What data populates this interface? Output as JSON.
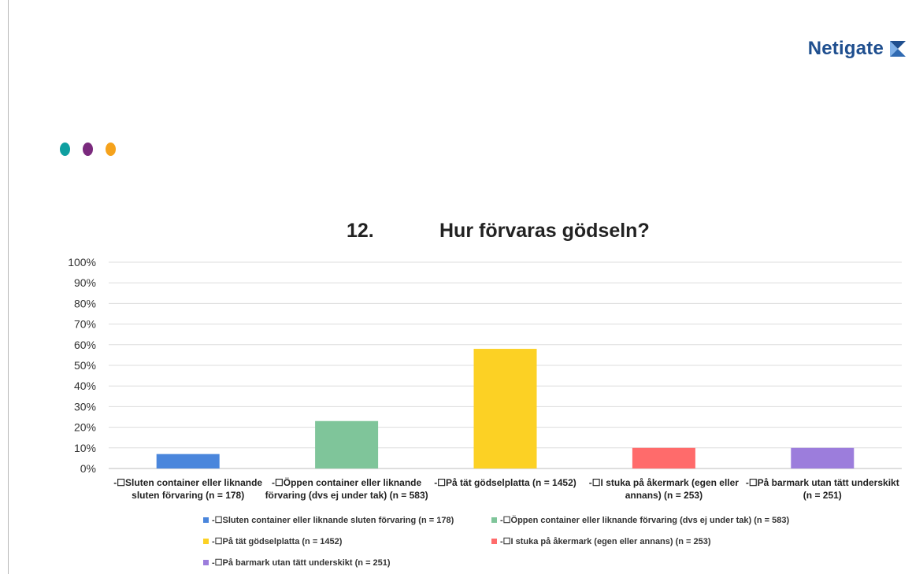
{
  "brand": {
    "name": "Netigate"
  },
  "decor": {
    "dot_colors": [
      "#0e9fa0",
      "#7a2a7d",
      "#f5a21c"
    ]
  },
  "chart_data": {
    "type": "bar",
    "title_number": "12.",
    "title": "Hur förvaras gödseln?",
    "xlabel": "",
    "ylabel": "",
    "ylim": [
      0,
      100
    ],
    "yticks": [
      "0%",
      "10%",
      "20%",
      "30%",
      "40%",
      "50%",
      "60%",
      "70%",
      "80%",
      "90%",
      "100%"
    ],
    "grid": true,
    "legend_position": "bottom",
    "categories": [
      [
        "-☐Sluten container eller liknande",
        "sluten förvaring (n = 178)"
      ],
      [
        "-☐Öppen container eller liknande",
        "förvaring (dvs ej under tak) (n = 583)"
      ],
      [
        "-☐På tät gödselplatta (n = 1452)"
      ],
      [
        "-☐I stuka på åkermark (egen eller",
        "annans) (n = 253)"
      ],
      [
        "-☐På barmark utan tätt underskikt",
        "(n = 251)"
      ]
    ],
    "values": [
      7,
      23,
      58,
      10,
      10
    ],
    "colors": [
      "#4a86dc",
      "#7fc59a",
      "#fcd124",
      "#ff6b6b",
      "#9c7ddc"
    ],
    "legend": [
      "-☐Sluten container eller liknande sluten förvaring (n = 178)",
      "-☐Öppen container eller liknande förvaring (dvs ej under tak) (n = 583)",
      "-☐På tät gödselplatta (n = 1452)",
      "-☐I stuka på åkermark (egen eller annans) (n = 253)",
      "-☐På barmark utan tätt underskikt (n = 251)"
    ]
  }
}
